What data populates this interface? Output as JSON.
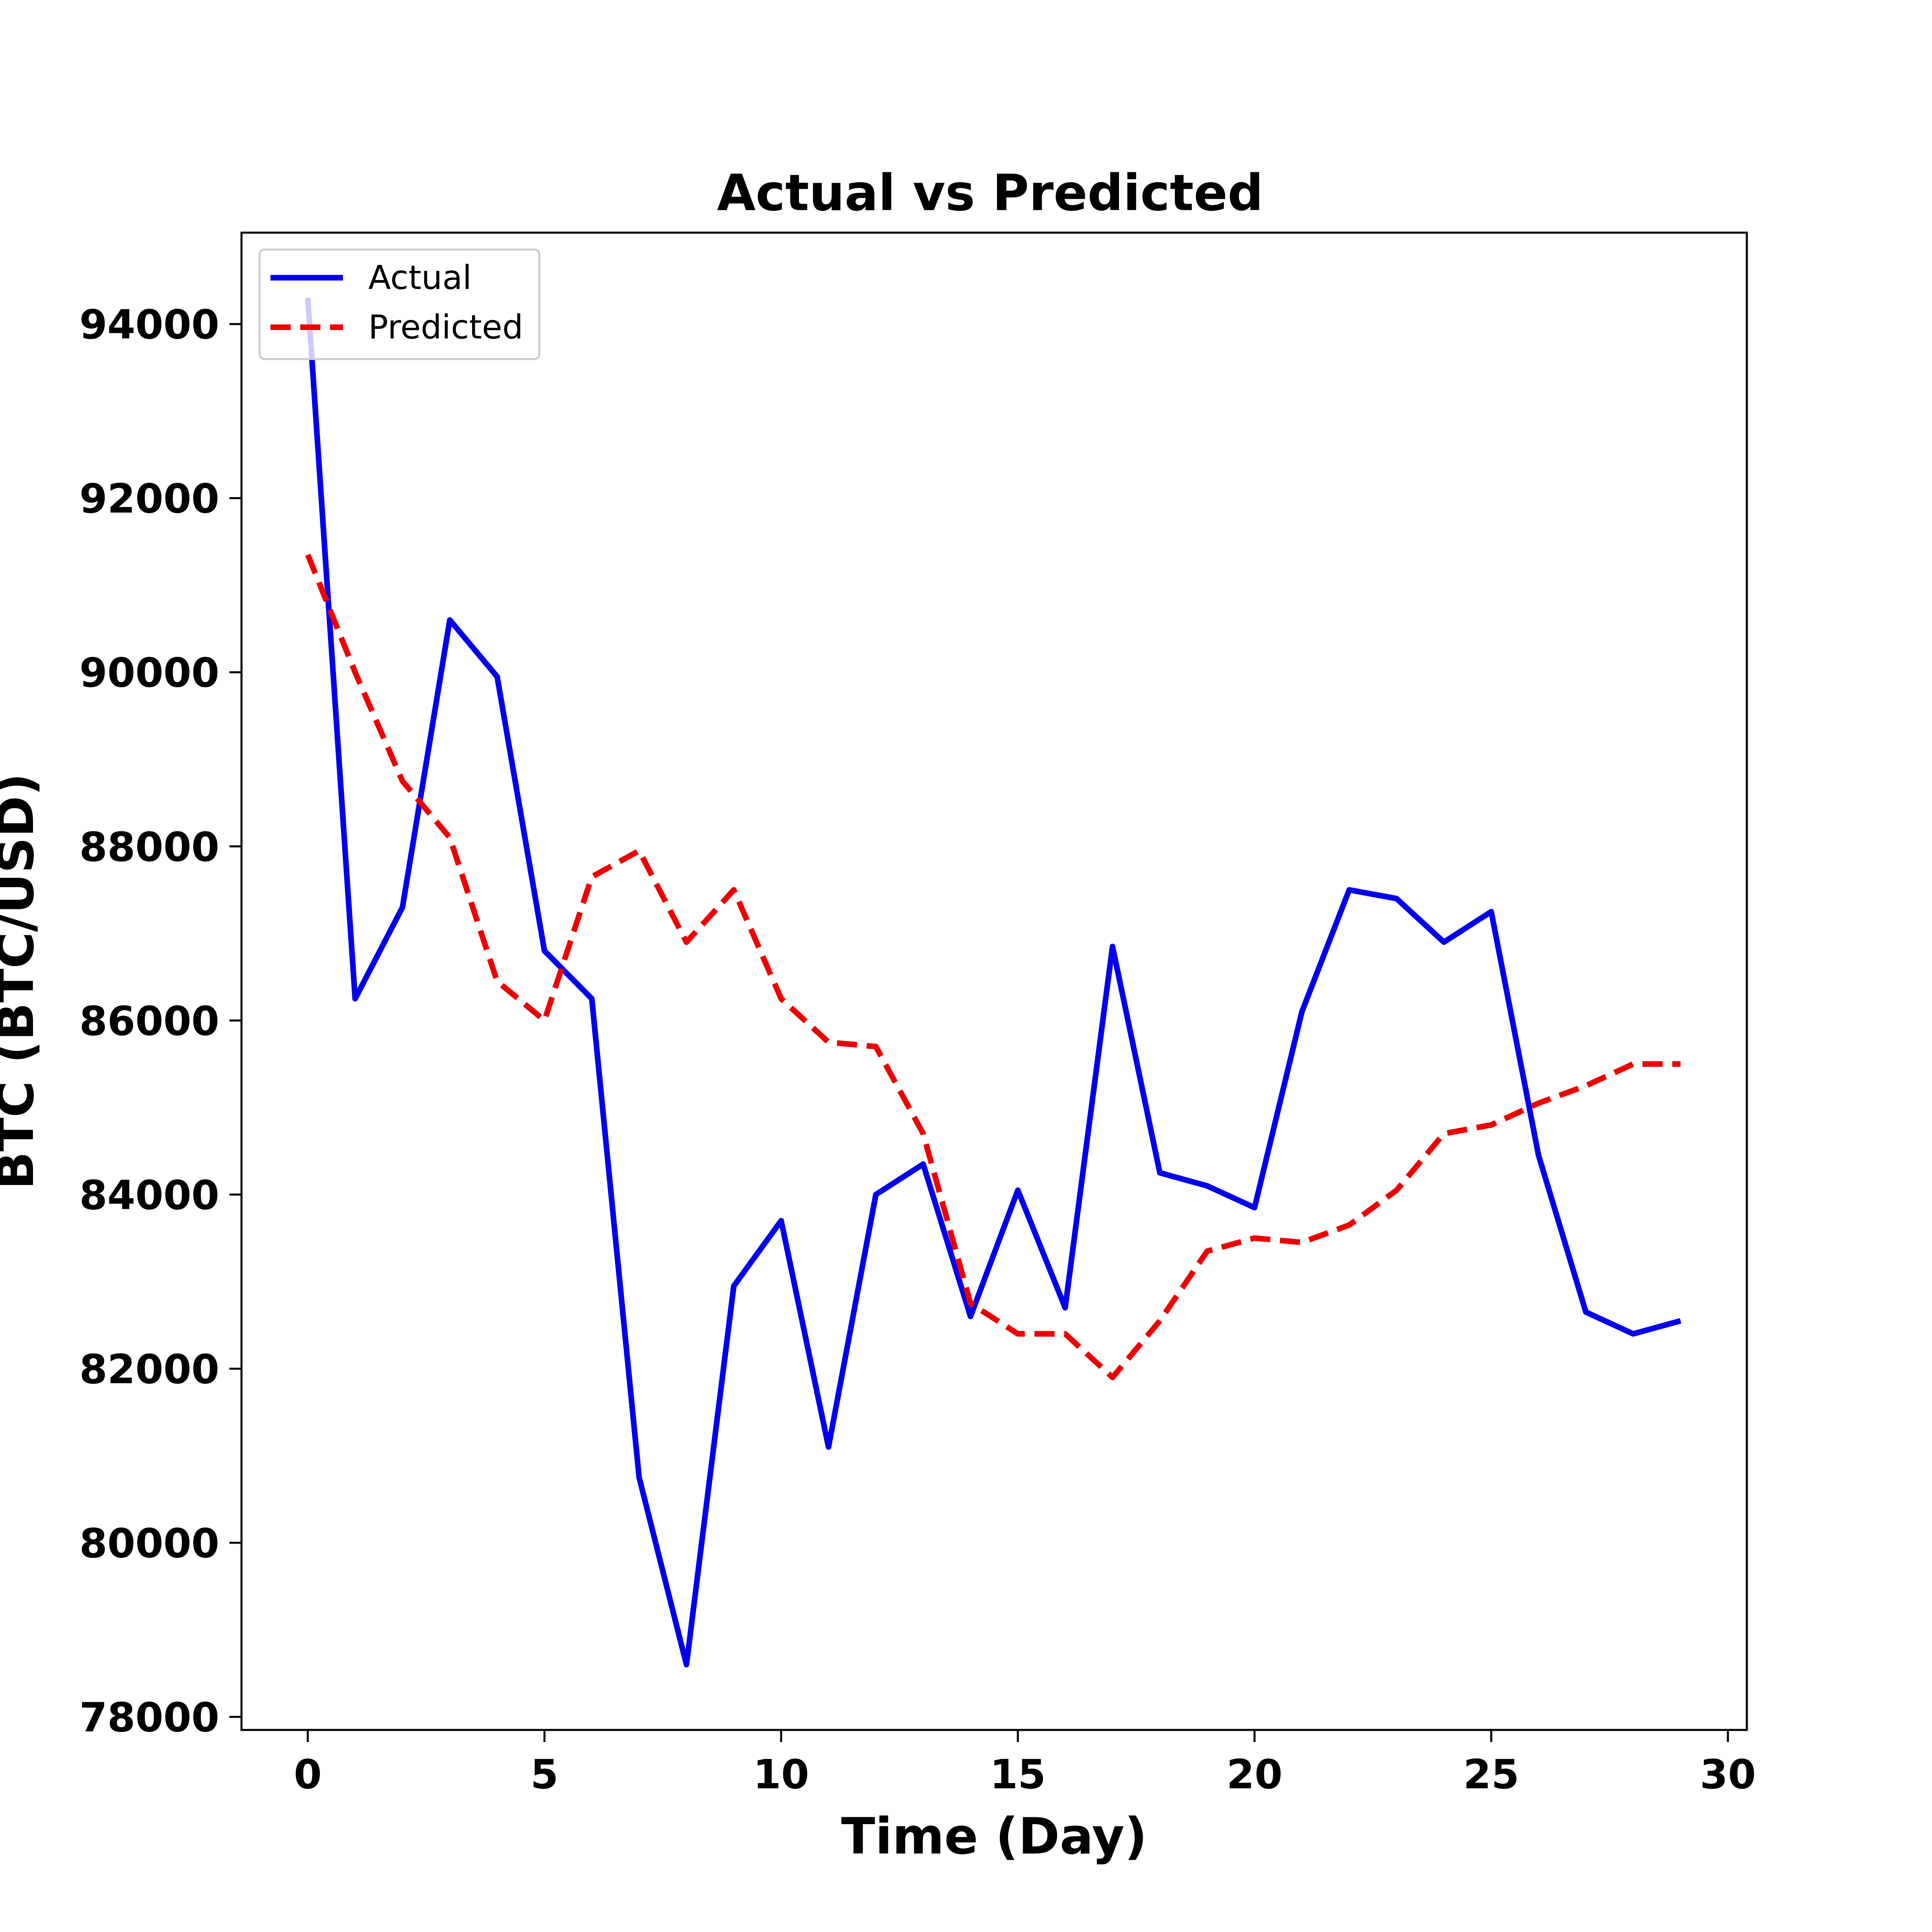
{
  "chart_data": {
    "type": "line",
    "title": "Actual vs Predicted",
    "xlabel": "Time (Day)",
    "ylabel": "BTC (BTC/USD)",
    "xlim": [
      -1.4,
      30.4
    ],
    "ylim": [
      77850,
      95050
    ],
    "x_ticks": [
      0,
      5,
      10,
      15,
      20,
      25,
      30
    ],
    "y_ticks": [
      78000,
      80000,
      82000,
      84000,
      86000,
      88000,
      90000,
      92000,
      94000
    ],
    "grid": false,
    "legend_position": "upper left",
    "x": [
      0,
      1,
      2,
      3,
      4,
      5,
      6,
      7,
      8,
      9,
      10,
      11,
      12,
      13,
      14,
      15,
      16,
      17,
      18,
      19,
      20,
      21,
      22,
      23,
      24,
      25,
      26,
      27,
      28,
      29
    ],
    "series": [
      {
        "name": "Actual",
        "color": "#0000ee",
        "style": "solid",
        "values": [
          94300,
          86250,
          87300,
          90600,
          89950,
          86800,
          86250,
          80750,
          78600,
          82950,
          83700,
          81100,
          84000,
          84350,
          82600,
          84050,
          82700,
          86850,
          84250,
          84100,
          83850,
          86100,
          87500,
          87400,
          86900,
          87250,
          84450,
          82650,
          82400,
          82550
        ]
      },
      {
        "name": "Predicted",
        "color": "#ee0000",
        "style": "dashed",
        "values": [
          91350,
          90000,
          88750,
          88100,
          86450,
          86000,
          87650,
          87950,
          86900,
          87500,
          86250,
          85750,
          85700,
          84700,
          82750,
          82400,
          82400,
          81900,
          82550,
          83350,
          83500,
          83450,
          83650,
          84050,
          84700,
          84800,
          85050,
          85250,
          85500,
          85500
        ]
      }
    ]
  }
}
